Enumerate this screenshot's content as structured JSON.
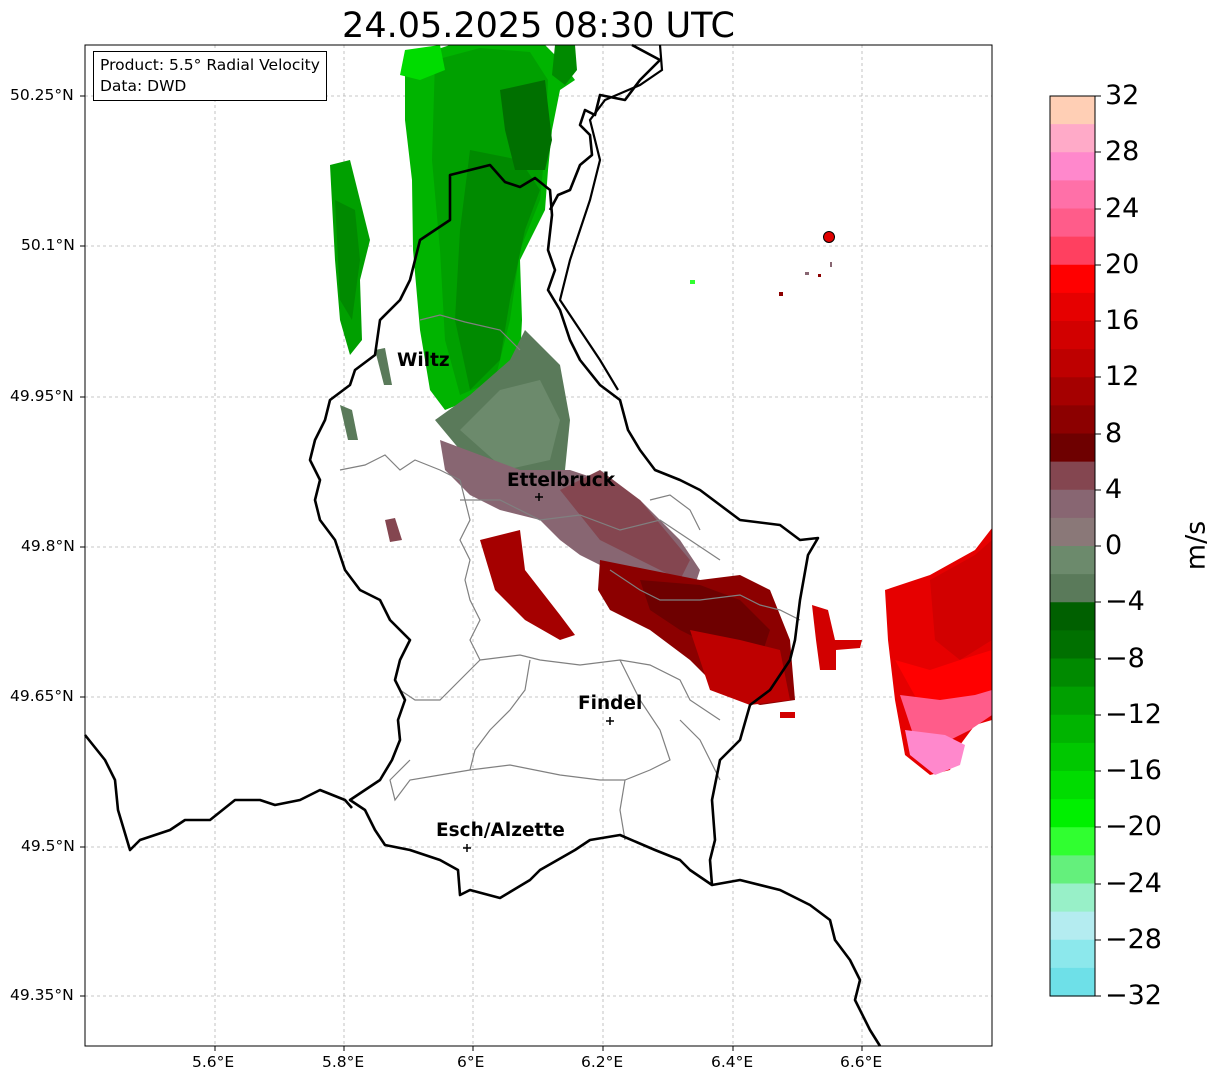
{
  "title": "24.05.2025 08:30 UTC",
  "info_box": {
    "product": "Product: 5.5° Radial Velocity",
    "source": "Data: DWD"
  },
  "lon_ticks": [
    "5.6°E",
    "5.8°E",
    "6°E",
    "6.2°E",
    "6.4°E",
    "6.6°E"
  ],
  "lat_ticks": [
    "50.25°N",
    "50.1°N",
    "49.95°N",
    "49.8°N",
    "49.65°N",
    "49.5°N",
    "49.35°N"
  ],
  "cities": [
    {
      "name": "Wiltz"
    },
    {
      "name": "Ettelbruck"
    },
    {
      "name": "Findel"
    },
    {
      "name": "Esch/Alzette"
    }
  ],
  "colorbar": {
    "unit": "m/s",
    "tick_labels": [
      "32",
      "28",
      "24",
      "20",
      "16",
      "12",
      "8",
      "4",
      "0",
      "−4",
      "−8",
      "−12",
      "−16",
      "−20",
      "−24",
      "−28",
      "−32"
    ],
    "colors_top_to_bottom": [
      "#ffcfb5",
      "#ffaac8",
      "#ff88cc",
      "#ff70a8",
      "#ff5c8a",
      "#ff4060",
      "#ff0000",
      "#e60000",
      "#d20000",
      "#be0000",
      "#a50000",
      "#8c0000",
      "#6e0000",
      "#844650",
      "#886672",
      "#8a7878",
      "#6c8a6c",
      "#5a7a5a",
      "#006000",
      "#007000",
      "#008a00",
      "#00a000",
      "#00b400",
      "#00c800",
      "#00dc00",
      "#00f000",
      "#30ff30",
      "#64f07c",
      "#98f0c8",
      "#b4ecf0",
      "#8ce8ec",
      "#6ee0e8"
    ]
  }
}
